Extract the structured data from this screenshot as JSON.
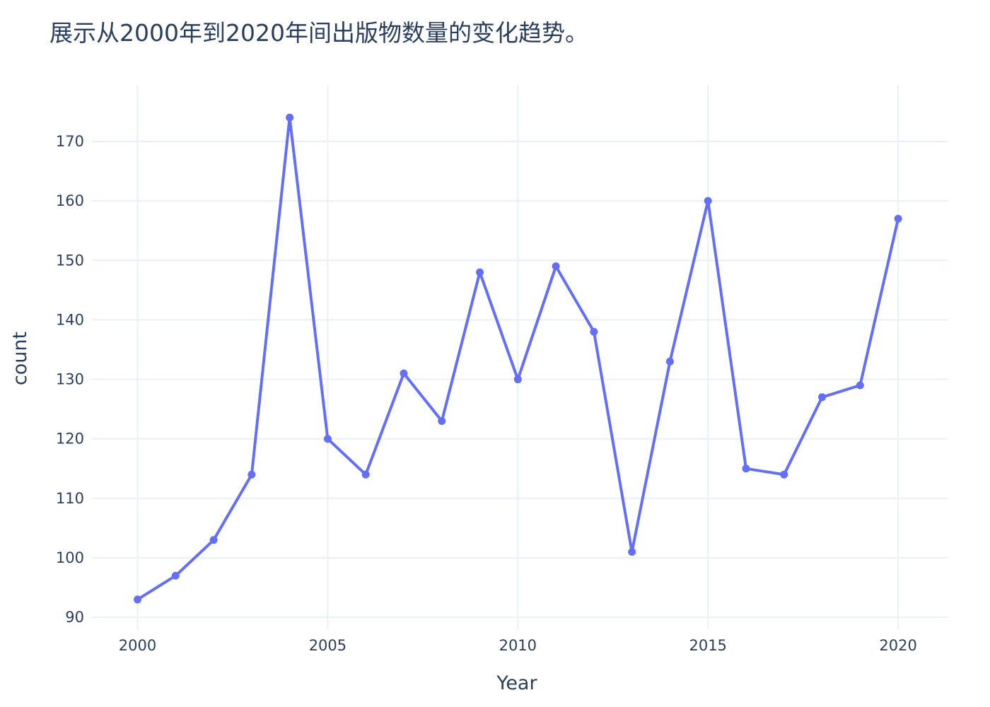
{
  "chart_data": {
    "type": "line",
    "title": "展示从2000年到2020年间出版物数量的变化趋势。",
    "xlabel": "Year",
    "ylabel": "count",
    "x": [
      2000,
      2001,
      2002,
      2003,
      2004,
      2005,
      2006,
      2007,
      2008,
      2009,
      2010,
      2011,
      2012,
      2013,
      2014,
      2015,
      2016,
      2017,
      2018,
      2019,
      2020
    ],
    "series": [
      {
        "name": "",
        "values": [
          93,
          97,
          103,
          114,
          174,
          120,
          114,
          131,
          123,
          148,
          130,
          149,
          138,
          101,
          133,
          160,
          115,
          114,
          127,
          129,
          157
        ]
      }
    ],
    "xlim": [
      1998.8,
      2021.3
    ],
    "ylim": [
      88,
      179.5
    ],
    "xticks": [
      "2000",
      "2005",
      "2010",
      "2015",
      "2020"
    ],
    "yticks": [
      "90",
      "100",
      "110",
      "120",
      "130",
      "140",
      "150",
      "160",
      "170"
    ],
    "grid": true,
    "colors": {
      "line": "#636efa",
      "grid": "#ebf0f8",
      "text": "#2a3f5f"
    }
  }
}
